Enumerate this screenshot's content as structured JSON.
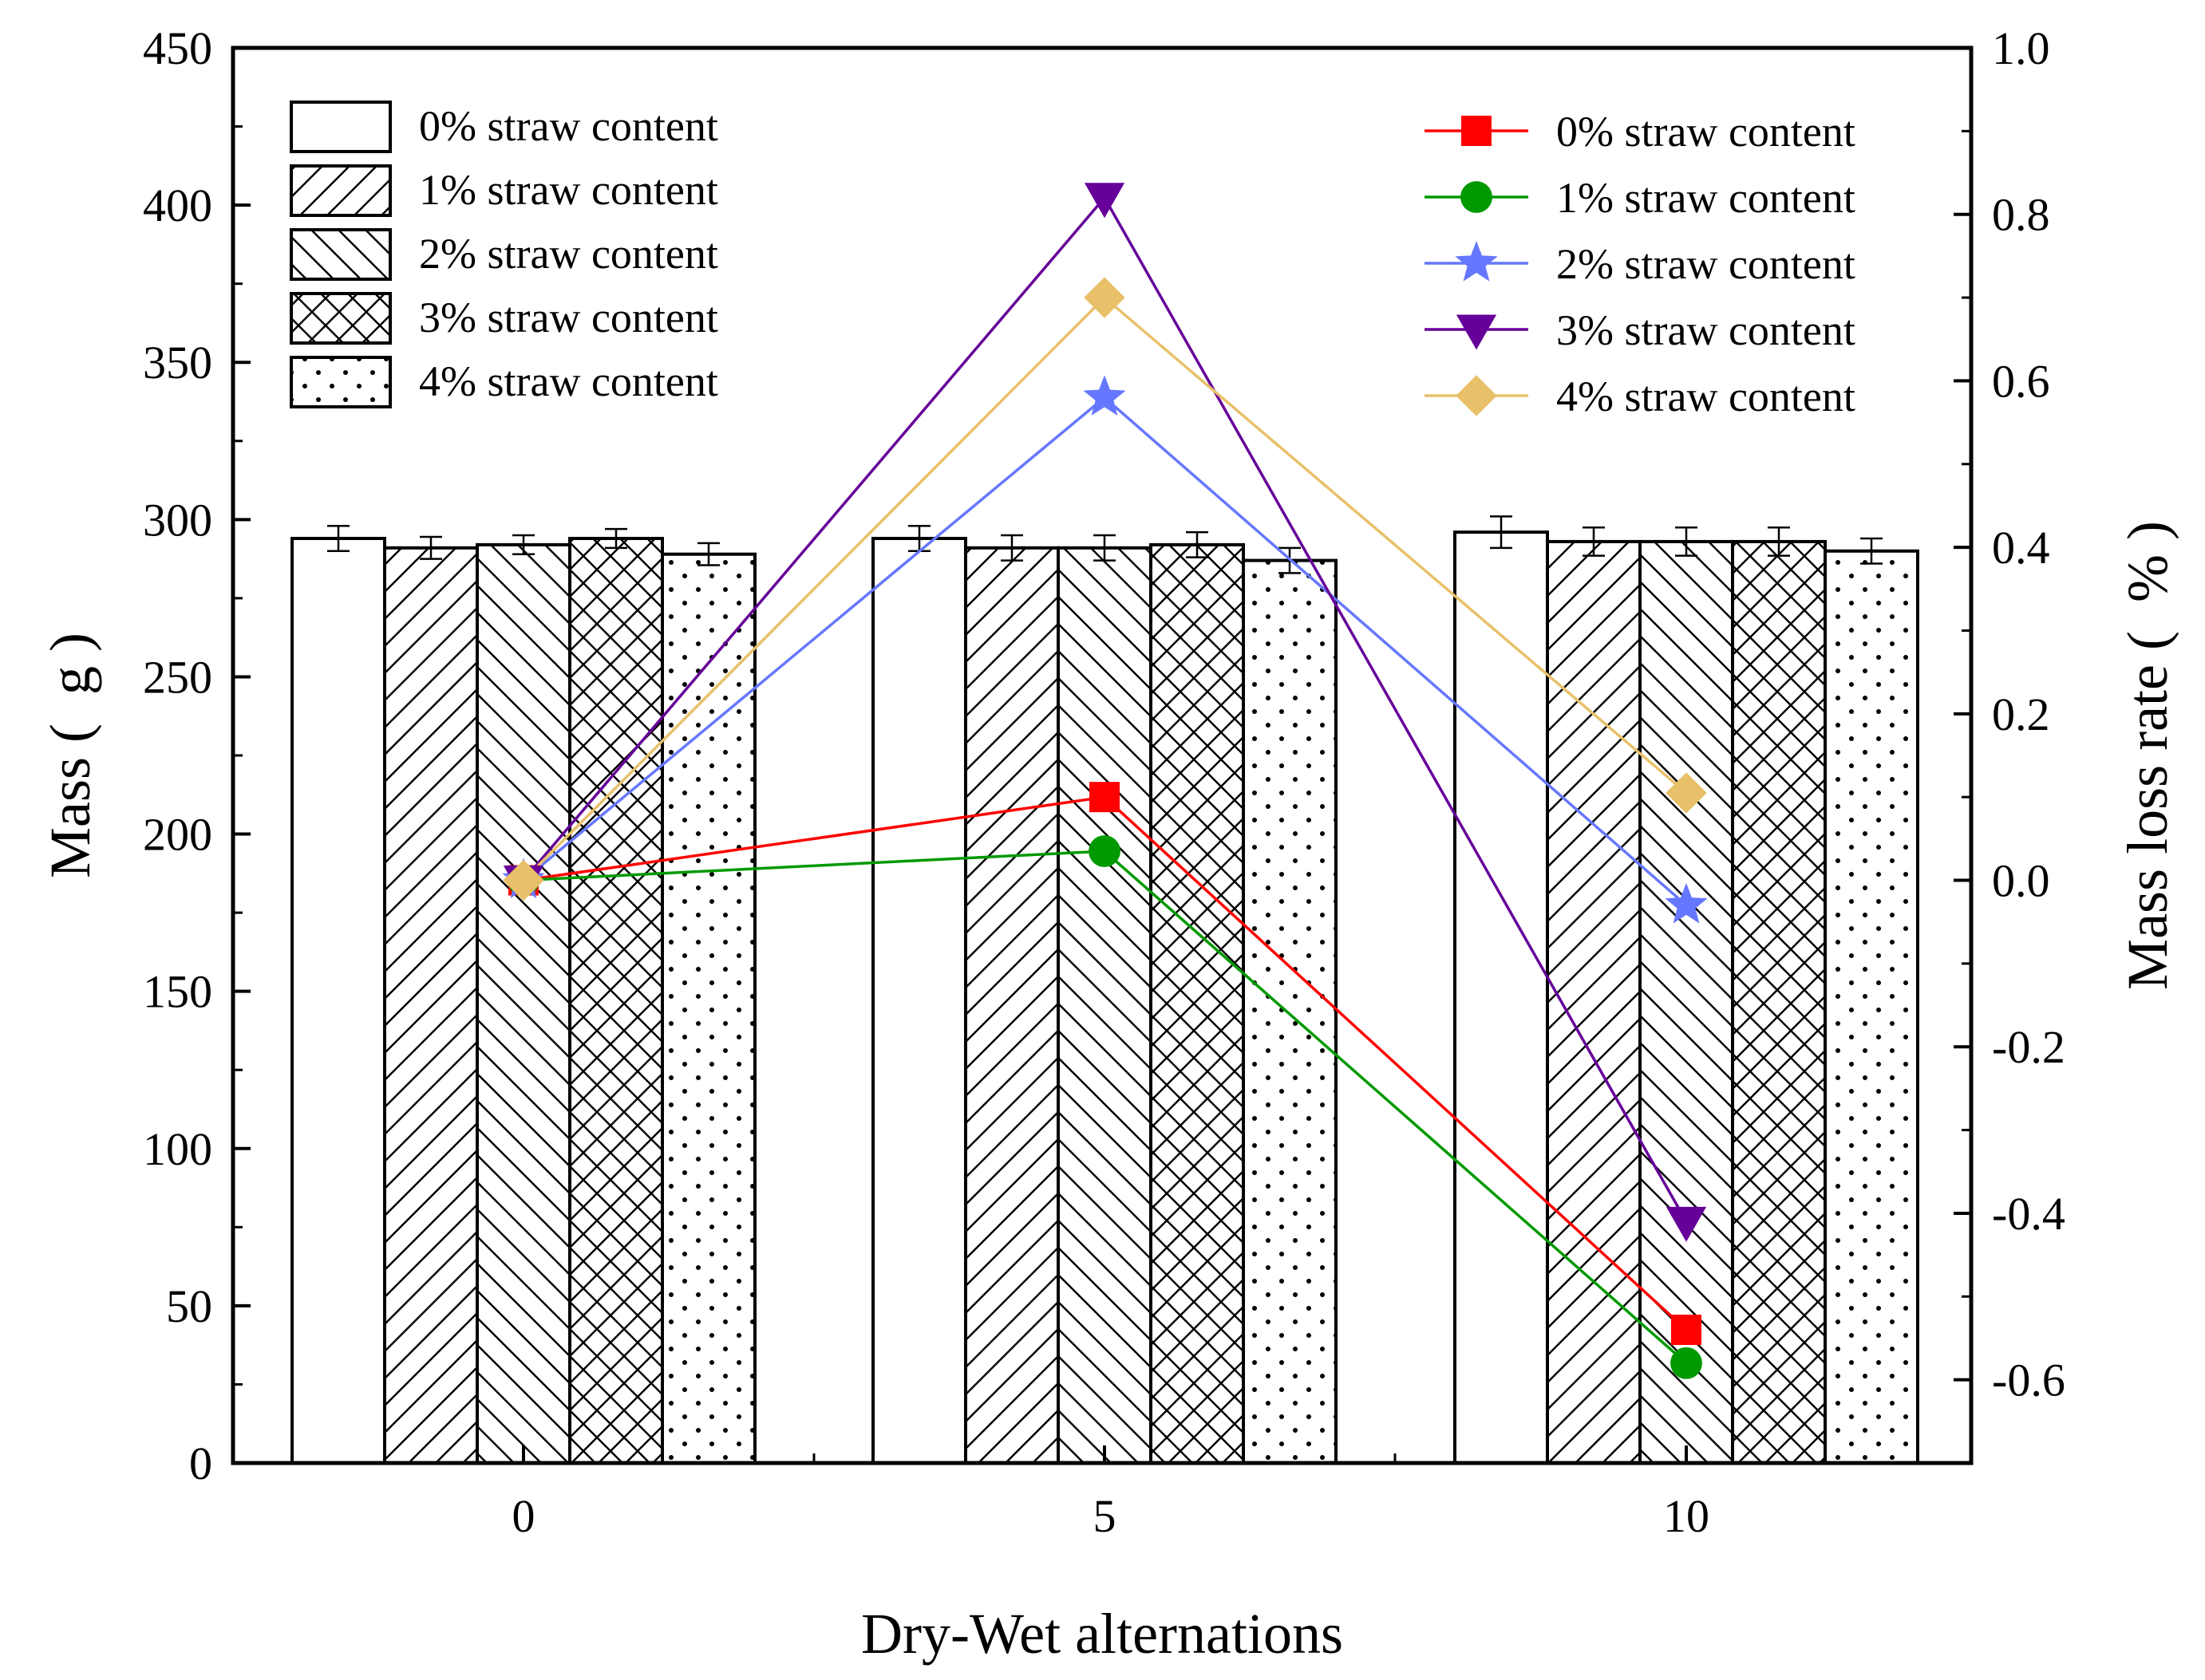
{
  "chart_data": {
    "type": "bar+line",
    "title": "",
    "xlabel": "Dry-Wet alternations",
    "ylabel_left": "Mass (  g )",
    "ylabel_right": "Mass loss rate (  % )",
    "categories": [
      "0",
      "5",
      "10"
    ],
    "ylim_left": [
      0,
      450
    ],
    "ylim_right": [
      -0.7,
      1.0
    ],
    "yticks_left": [
      "0",
      "50",
      "100",
      "150",
      "200",
      "250",
      "300",
      "350",
      "400",
      "450"
    ],
    "yticks_right": [
      "-0.6",
      "-0.4",
      "-0.2",
      "0.0",
      "0.2",
      "0.4",
      "0.6",
      "0.8",
      "1.0"
    ],
    "grid": false,
    "bar_series": [
      {
        "name": "0% straw content",
        "pattern": "none",
        "values": [
          294,
          294,
          296
        ],
        "errors": [
          4,
          4,
          5
        ]
      },
      {
        "name": "1% straw content",
        "pattern": "slash",
        "values": [
          291,
          291,
          293
        ],
        "errors": [
          3.5,
          4,
          4.5
        ]
      },
      {
        "name": "2% straw content",
        "pattern": "backslash",
        "values": [
          292,
          291,
          293
        ],
        "errors": [
          3,
          4,
          4.5
        ]
      },
      {
        "name": "3% straw content",
        "pattern": "cross",
        "values": [
          294,
          292,
          293
        ],
        "errors": [
          3,
          4,
          4.5
        ]
      },
      {
        "name": "4% straw content",
        "pattern": "dots",
        "values": [
          289,
          287,
          290
        ],
        "errors": [
          3.5,
          4,
          4
        ]
      }
    ],
    "line_series": [
      {
        "name": "0% straw content",
        "marker": "square",
        "color": "#ff0000",
        "values": [
          0.0,
          0.1,
          -0.54
        ]
      },
      {
        "name": "1% straw content",
        "marker": "circle",
        "color": "#009900",
        "values": [
          0.0,
          0.035,
          -0.58
        ]
      },
      {
        "name": "2% straw content",
        "marker": "star",
        "color": "#6677ff",
        "values": [
          0.0,
          0.58,
          -0.03
        ]
      },
      {
        "name": "3% straw content",
        "marker": "triangle-down",
        "color": "#660099",
        "values": [
          0.0,
          0.82,
          -0.41
        ]
      },
      {
        "name": "4% straw content",
        "marker": "diamond",
        "color": "#e8c06a",
        "values": [
          0.0,
          0.7,
          0.105
        ]
      }
    ],
    "bar_legend_position": "top-left",
    "line_legend_position": "top-right"
  }
}
